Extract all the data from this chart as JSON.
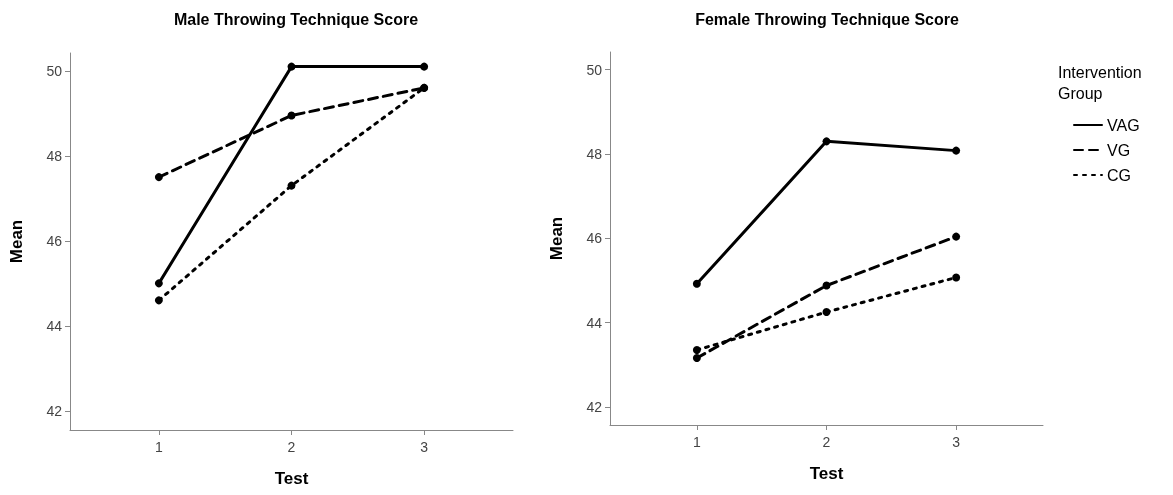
{
  "chart_data": [
    {
      "type": "line",
      "title": "Male Throwing Technique Score",
      "xlabel": "Test",
      "ylabel": "Mean",
      "x": [
        1,
        2,
        3
      ],
      "xlim": [
        0.33,
        3.67
      ],
      "xticks": [
        1,
        2,
        3
      ],
      "ylim": [
        41.55,
        50.42
      ],
      "yticks": [
        42,
        44,
        46,
        48,
        50
      ],
      "grid": false,
      "legend": false,
      "marker": "circle",
      "series": [
        {
          "color": "#000000",
          "line_style": "solid",
          "values": [
            45.0,
            50.1,
            50.1
          ]
        },
        {
          "color": "#000000",
          "line_style": "dashed",
          "values": [
            47.5,
            48.95,
            49.6
          ]
        },
        {
          "color": "#000000",
          "line_style": "dotted",
          "values": [
            44.6,
            47.3,
            49.6
          ]
        }
      ]
    },
    {
      "type": "line",
      "title": "Female Throwing Technique Score",
      "xlabel": "Test",
      "ylabel": "Mean",
      "x": [
        1,
        2,
        3
      ],
      "xlim": [
        0.33,
        3.67
      ],
      "xticks": [
        1,
        2,
        3
      ],
      "ylim": [
        41.57,
        50.42
      ],
      "yticks": [
        42,
        44,
        46,
        48,
        50
      ],
      "grid": false,
      "legend": "right",
      "legend_title": "Intervention Group",
      "marker": "circle",
      "series": [
        {
          "name": "VAG",
          "color": "#000000",
          "line_style": "solid",
          "values": [
            44.92,
            48.3,
            48.08
          ]
        },
        {
          "name": "VG",
          "color": "#000000",
          "line_style": "dashed",
          "values": [
            43.16,
            44.88,
            46.04
          ]
        },
        {
          "name": "CG",
          "color": "#000000",
          "line_style": "dotted",
          "values": [
            43.35,
            44.25,
            45.07
          ]
        }
      ]
    }
  ]
}
